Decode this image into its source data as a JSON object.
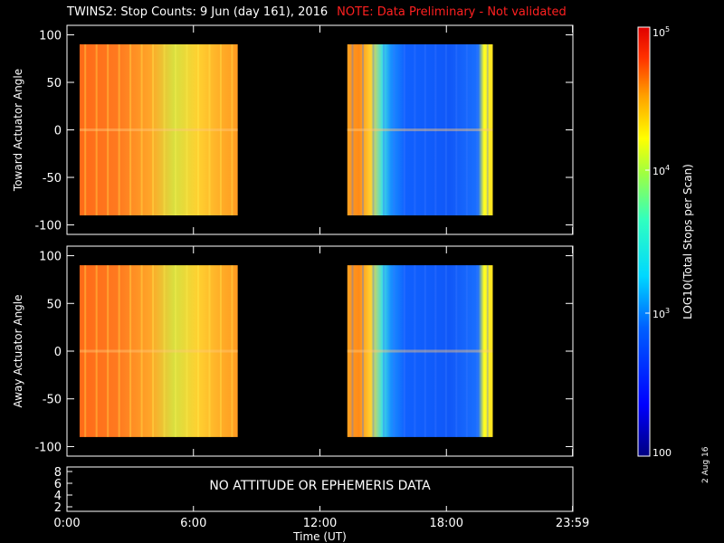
{
  "title": "TWINS2: Stop Counts:  9 Jun (day 161), 2016",
  "note": "NOTE: Data Preliminary - Not validated",
  "date_stamp": "2 Aug 16",
  "colors": {
    "frame": "#ffffff",
    "note": "#ff2020",
    "background": "#000000"
  },
  "chart_data": [
    {
      "type": "heatmap",
      "name": "toward",
      "ylabel": "Toward Actuator Angle",
      "ylim": [
        -110,
        110
      ],
      "yticks": [
        100,
        50,
        0,
        -50,
        -100
      ],
      "xlim": [
        0,
        24
      ],
      "data_y_range": [
        -90,
        90
      ],
      "segments": [
        {
          "x_start": 0.6,
          "x_end": 8.1,
          "level": "high (~1e4-1e5)"
        },
        {
          "x_start": 13.3,
          "x_end": 20.2,
          "level": "high at start (~1e4), low (~1e2.5) after 15:00, high at end"
        }
      ]
    },
    {
      "type": "heatmap",
      "name": "away",
      "ylabel": "Away Actuator Angle",
      "ylim": [
        -110,
        110
      ],
      "yticks": [
        100,
        50,
        0,
        -50,
        -100
      ],
      "xlim": [
        0,
        24
      ],
      "data_y_range": [
        -90,
        90
      ],
      "segments": [
        {
          "x_start": 0.6,
          "x_end": 8.1,
          "level": "high (~1e4-1e5)"
        },
        {
          "x_start": 13.3,
          "x_end": 20.2,
          "level": "high at start (~1e4), low (~1e2.5) after 15:00, high at end"
        }
      ]
    },
    {
      "type": "table",
      "name": "attitude",
      "yticks": [
        8,
        6,
        4,
        2
      ],
      "message": "NO ATTITUDE OR EPHEMERIS DATA"
    }
  ],
  "x_axis": {
    "label": "Time (UT)",
    "ticks": [
      {
        "value": 0,
        "label": "0:00"
      },
      {
        "value": 6,
        "label": "6:00"
      },
      {
        "value": 12,
        "label": "12:00"
      },
      {
        "value": 18,
        "label": "18:00"
      },
      {
        "value": 23.983,
        "label": "23:59"
      }
    ]
  },
  "colorbar": {
    "label": "LOG10(Total Stops per Scan)",
    "scale": "log",
    "range": [
      100,
      100000
    ],
    "ticks": [
      {
        "value": 100000,
        "label": "10^5"
      },
      {
        "value": 10000,
        "label": "10^4"
      },
      {
        "value": 1000,
        "label": "10^3"
      },
      {
        "value": 100,
        "label": "100"
      }
    ]
  }
}
